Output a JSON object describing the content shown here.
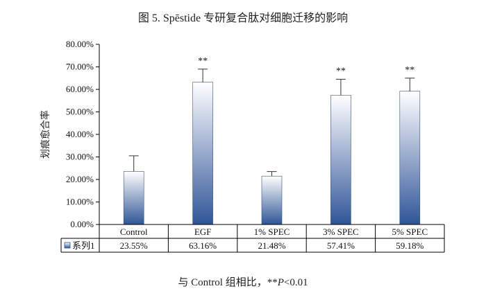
{
  "title": "图 5. Spēstide 专研复合肽对细胞迁移的影响",
  "footnote": {
    "prefix": "与 Control 组相比，**",
    "p_symbol": "P",
    "suffix": "<0.01"
  },
  "colors": {
    "bar_top": "#ffffff",
    "bar_bottom": "#2f5597",
    "axis": "#000000"
  },
  "chart_data": {
    "type": "bar",
    "ylabel": "划痕愈合率",
    "ylim": [
      0,
      80
    ],
    "yticks": [
      0,
      10,
      20,
      30,
      40,
      50,
      60,
      70,
      80
    ],
    "ytick_labels": [
      "0.00%",
      "10.00%",
      "20.00%",
      "30.00%",
      "40.00%",
      "50.00%",
      "60.00%",
      "70.00%",
      "80.00%"
    ],
    "categories": [
      "Control",
      "EGF",
      "1% SPEC",
      "3% SPEC",
      "5% SPEC"
    ],
    "series": [
      {
        "name": "系列1",
        "values": [
          23.55,
          63.16,
          21.48,
          57.41,
          59.18
        ],
        "value_labels": [
          "23.55%",
          "63.16%",
          "21.48%",
          "57.41%",
          "59.18%"
        ],
        "error_upper": [
          30.5,
          69.0,
          23.5,
          64.5,
          65.0
        ],
        "significance": [
          "",
          "**",
          "",
          "**",
          "**"
        ]
      }
    ],
    "grid": false,
    "legend": "data-table-left"
  }
}
